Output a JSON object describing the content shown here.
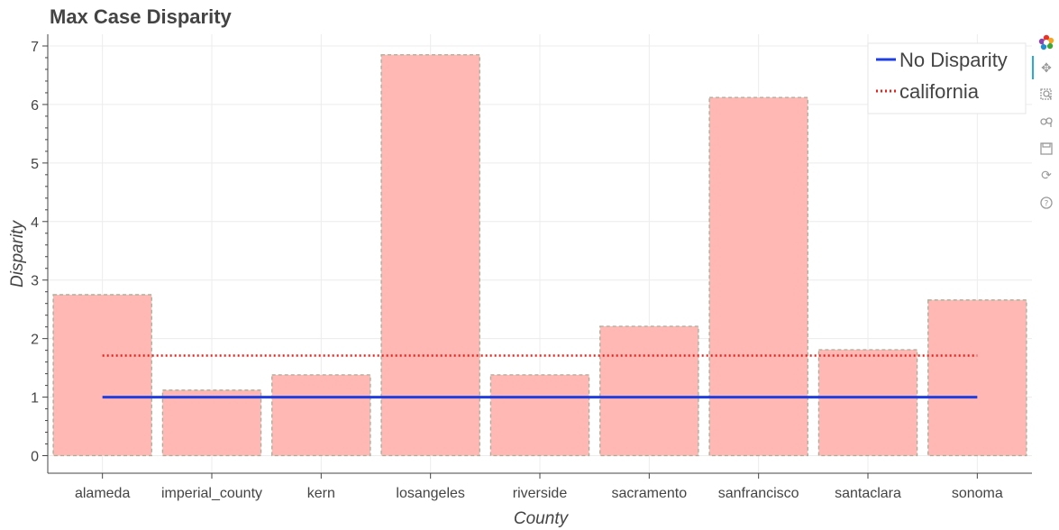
{
  "chart_data": {
    "type": "bar",
    "title": "Max Case Disparity",
    "xlabel": "County",
    "ylabel": "Disparity",
    "categories": [
      "alameda",
      "imperial_county",
      "kern",
      "losangeles",
      "riverside",
      "sacramento",
      "sanfrancisco",
      "santaclara",
      "sonoma"
    ],
    "values": [
      2.75,
      1.12,
      1.38,
      6.85,
      1.38,
      2.21,
      6.12,
      1.81,
      2.66
    ],
    "ylim": [
      -0.3,
      7.2
    ],
    "yticks": [
      0,
      1,
      2,
      3,
      4,
      5,
      6,
      7
    ],
    "lines": [
      {
        "name": "No Disparity",
        "value": 1.0,
        "color": "#1f3fe0",
        "style": "solid"
      },
      {
        "name": "california",
        "value": 1.71,
        "color": "#e8221b",
        "style": "dotted"
      }
    ],
    "bar_color": "#ffb8b4",
    "bar_edge_color": "#a8ae98",
    "grid": true,
    "legend_position": "top-right"
  },
  "toolbar": {
    "tools": [
      "bokeh-logo-icon",
      "pan-icon",
      "box-zoom-icon",
      "wheel-zoom-icon",
      "save-icon",
      "reset-icon",
      "help-icon"
    ]
  }
}
